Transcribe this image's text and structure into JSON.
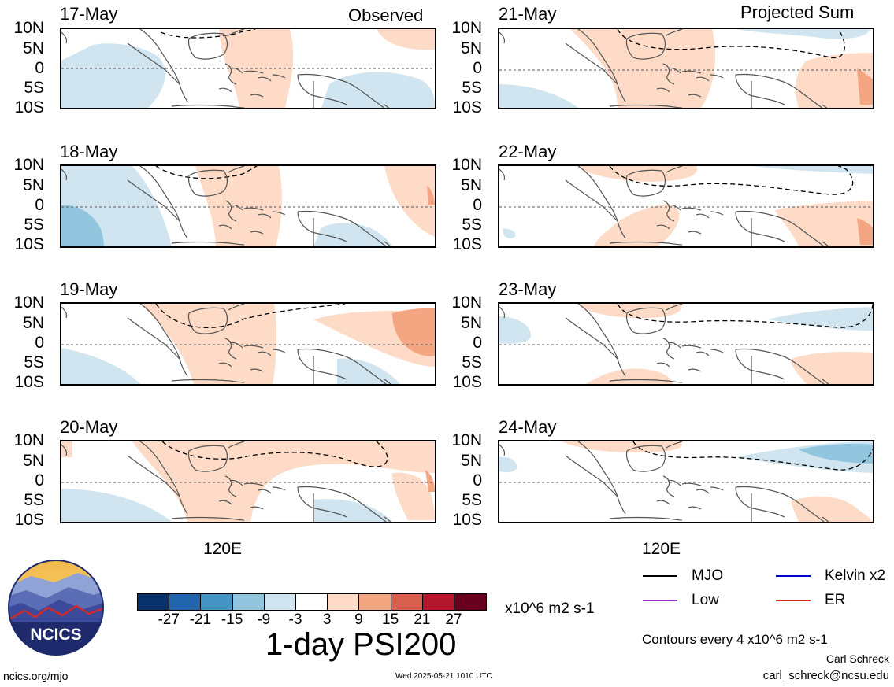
{
  "titles": {
    "observed": "Observed",
    "projected": "Projected Sum"
  },
  "panels": {
    "observed": [
      "17-May",
      "18-May",
      "19-May",
      "20-May"
    ],
    "projected": [
      "21-May",
      "22-May",
      "23-May",
      "24-May"
    ]
  },
  "lat_labels": [
    "10N",
    "5N",
    "0",
    "5S",
    "10S"
  ],
  "lon_label": "120E",
  "colorbar": {
    "colors": [
      "#08306b",
      "#2166ac",
      "#4393c3",
      "#92c5de",
      "#d1e5f0",
      "#ffffff",
      "#fddbc7",
      "#f4a582",
      "#d6604d",
      "#b2182b",
      "#67001f"
    ],
    "tick_labels": [
      "-27",
      "-21",
      "-15",
      "-9",
      "-3",
      "3",
      "9",
      "15",
      "21",
      "27"
    ],
    "units": "x10^6 m2 s-1"
  },
  "main_title": "1-day PSI200",
  "legend": [
    {
      "label": "MJO",
      "color": "#000000"
    },
    {
      "label": "Kelvin x2",
      "color": "#0000cc"
    },
    {
      "label": "Low",
      "color": "#9933cc"
    },
    {
      "label": "ER",
      "color": "#dd2222"
    }
  ],
  "contour_note": "Contours every 4 x10^6 m2 s-1",
  "author": "Carl Schreck",
  "email": "carl_schreck@ncsu.edu",
  "url": "ncics.org/mjo",
  "timestamp": "Wed 2025-05-21 1010 UTC",
  "logo_text": "NCICS"
}
